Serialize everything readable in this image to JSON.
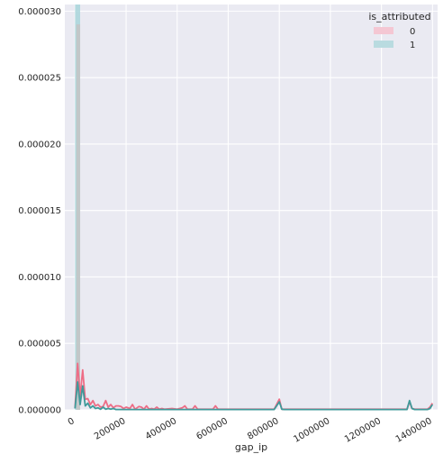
{
  "chart_data": {
    "type": "line",
    "title": "",
    "xlabel": "gap_ip",
    "ylabel": "",
    "xlim": [
      -40000,
      1420000
    ],
    "ylim": [
      0,
      3.05e-05
    ],
    "grid": true,
    "background": "#eaeaf2",
    "xticks": [
      0,
      200000,
      400000,
      600000,
      800000,
      1000000,
      1200000,
      1400000
    ],
    "xtick_labels": [
      "0",
      "200000",
      "400000",
      "600000",
      "800000",
      "1000000",
      "1200000",
      "1400000"
    ],
    "yticks": [
      0,
      5e-06,
      1e-05,
      1.5e-05,
      2e-05,
      2.5e-05,
      3e-05
    ],
    "ytick_labels": [
      "0.000000",
      "0.000005",
      "0.000010",
      "0.000015",
      "0.000020",
      "0.000025",
      "0.000030"
    ],
    "legend": {
      "title": "is_attributed",
      "placement": "top-right",
      "entries": [
        {
          "label": "0",
          "color": "#f4c7d3"
        },
        {
          "label": "1",
          "color": "#b9dbe0"
        }
      ]
    },
    "hist_bars": [
      {
        "name": "1",
        "x0": 0,
        "x1": 20000,
        "value": 3.05e-05,
        "color": "#a8d5db"
      },
      {
        "name": "0",
        "x0": 5000,
        "x1": 20000,
        "value": 2.9e-05,
        "color": "#c4c4c4"
      }
    ],
    "series": [
      {
        "name": "0",
        "color": "#ee6d86",
        "x": [
          0,
          10000,
          20000,
          30000,
          40000,
          50000,
          60000,
          70000,
          80000,
          90000,
          100000,
          110000,
          120000,
          130000,
          140000,
          150000,
          160000,
          170000,
          180000,
          190000,
          200000,
          215000,
          225000,
          235000,
          250000,
          260000,
          270000,
          280000,
          290000,
          300000,
          310000,
          320000,
          330000,
          340000,
          350000,
          380000,
          400000,
          420000,
          430000,
          440000,
          460000,
          470000,
          480000,
          500000,
          540000,
          550000,
          560000,
          580000,
          600000,
          700000,
          780000,
          800000,
          810000,
          820000,
          900000,
          1000000,
          1100000,
          1200000,
          1300000,
          1310000,
          1320000,
          1330000,
          1350000,
          1380000,
          1390000,
          1400000
        ],
        "y": [
          1.5e-07,
          3.5e-06,
          1e-06,
          3e-06,
          8e-07,
          8.5e-07,
          4e-07,
          7e-07,
          3e-07,
          4e-07,
          2e-07,
          2.5e-07,
          7e-07,
          2e-07,
          4e-07,
          1.5e-07,
          3e-07,
          3e-07,
          2.5e-07,
          1e-07,
          2e-07,
          1e-07,
          4e-07,
          5e-08,
          2.5e-07,
          2e-07,
          5e-08,
          3e-07,
          5e-08,
          1e-07,
          5e-08,
          2e-07,
          5e-08,
          1e-07,
          5e-08,
          1e-07,
          5e-08,
          1.5e-07,
          3e-07,
          5e-08,
          5e-08,
          3e-07,
          5e-08,
          5e-08,
          5e-08,
          3e-07,
          5e-08,
          5e-08,
          5e-08,
          5e-08,
          5e-08,
          8e-07,
          5e-08,
          5e-08,
          5e-08,
          5e-08,
          5e-08,
          5e-08,
          5e-08,
          6e-07,
          1e-07,
          5e-08,
          5e-08,
          5e-08,
          2e-07,
          5e-07
        ]
      },
      {
        "name": "1",
        "color": "#3f9a9a",
        "x": [
          0,
          10000,
          20000,
          30000,
          40000,
          50000,
          60000,
          70000,
          80000,
          90000,
          100000,
          110000,
          120000,
          130000,
          140000,
          150000,
          160000,
          200000,
          250000,
          300000,
          400000,
          500000,
          600000,
          700000,
          780000,
          800000,
          810000,
          820000,
          900000,
          1000000,
          1100000,
          1200000,
          1300000,
          1310000,
          1320000,
          1330000,
          1350000,
          1380000,
          1390000,
          1400000
        ],
        "y": [
          1e-07,
          2.1e-06,
          4e-07,
          1.8e-06,
          3e-07,
          5e-07,
          1.5e-07,
          3e-07,
          1e-07,
          1.5e-07,
          5e-08,
          2e-07,
          5e-08,
          1e-07,
          5e-08,
          1e-07,
          3e-08,
          3e-08,
          3e-08,
          3e-08,
          3e-08,
          3e-08,
          3e-08,
          3e-08,
          3e-08,
          6e-07,
          5e-08,
          3e-08,
          3e-08,
          3e-08,
          3e-08,
          3e-08,
          3e-08,
          7e-07,
          1e-07,
          3e-08,
          3e-08,
          3e-08,
          1e-07,
          4e-07
        ]
      }
    ]
  }
}
